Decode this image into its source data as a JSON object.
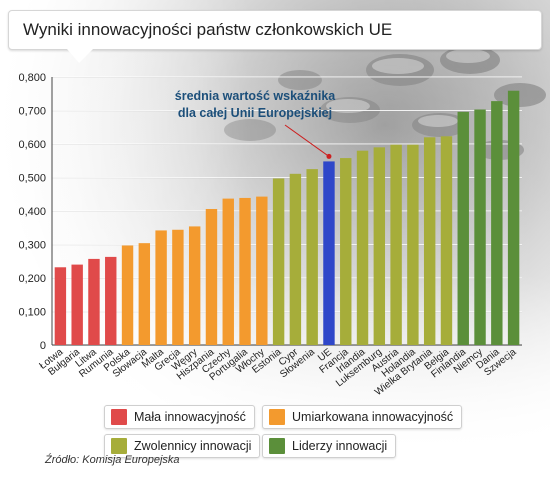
{
  "title": "Wyniki innowacyjności państw członkowskich UE",
  "source": "Źródło: Komisja Europejska",
  "colors": {
    "Mała innowacyjność": "#e04a4a",
    "Umiarkowana innowacyjność": "#f39a2e",
    "Zwolennicy innowacji": "#a6ad3a",
    "Liderzy innowacji": "#5b8f3a",
    "UE": "#2f47c9",
    "annotation": "#1c4f7a"
  },
  "legend": [
    {
      "label": "Mała innowacyjność",
      "color": "#e04a4a"
    },
    {
      "label": "Umiarkowana innowacyjność",
      "color": "#f39a2e"
    },
    {
      "label": "Zwolennicy innowacji",
      "color": "#a6ad3a"
    },
    {
      "label": "Liderzy innowacji",
      "color": "#5b8f3a"
    }
  ],
  "chart_data": {
    "type": "bar",
    "title": "Wyniki innowacyjności państw członkowskich UE",
    "xlabel": "",
    "ylabel": "",
    "ylim": [
      0,
      0.8
    ],
    "yticks": [
      "0",
      "0,100",
      "0,200",
      "0,300",
      "0,400",
      "0,500",
      "0,600",
      "0,700",
      "0,800"
    ],
    "grid": true,
    "categories": [
      "Łotwa",
      "Bułgaria",
      "Litwa",
      "Rumunia",
      "Polska",
      "Słowacja",
      "Malta",
      "Grecja",
      "Węgry",
      "Hiszpania",
      "Czechy",
      "Portugalia",
      "Włochy",
      "Estonia",
      "Cypr",
      "Słowenia",
      "UE",
      "Francja",
      "Irlandia",
      "Luksemburg",
      "Austria",
      "Holandia",
      "Wielka Brytania",
      "Belgia",
      "Finlandia",
      "Niemcy",
      "Dania",
      "Szwecja"
    ],
    "values": [
      0.232,
      0.24,
      0.257,
      0.263,
      0.297,
      0.304,
      0.342,
      0.344,
      0.354,
      0.406,
      0.437,
      0.439,
      0.443,
      0.497,
      0.511,
      0.525,
      0.548,
      0.558,
      0.58,
      0.59,
      0.598,
      0.598,
      0.62,
      0.623,
      0.696,
      0.703,
      0.728,
      0.759
    ],
    "groups": [
      "Mała innowacyjność",
      "Mała innowacyjność",
      "Mała innowacyjność",
      "Mała innowacyjność",
      "Umiarkowana innowacyjność",
      "Umiarkowana innowacyjność",
      "Umiarkowana innowacyjność",
      "Umiarkowana innowacyjność",
      "Umiarkowana innowacyjność",
      "Umiarkowana innowacyjność",
      "Umiarkowana innowacyjność",
      "Umiarkowana innowacyjność",
      "Umiarkowana innowacyjność",
      "Zwolennicy innowacji",
      "Zwolennicy innowacji",
      "Zwolennicy innowacji",
      "UE",
      "Zwolennicy innowacji",
      "Zwolennicy innowacji",
      "Zwolennicy innowacji",
      "Zwolennicy innowacji",
      "Zwolennicy innowacji",
      "Zwolennicy innowacji",
      "Zwolennicy innowacji",
      "Liderzy innowacji",
      "Liderzy innowacji",
      "Liderzy innowacji",
      "Liderzy innowacji"
    ],
    "annotation": {
      "lines": [
        "średnia wartość wskaźnika",
        "dla całej Unii Europejskiej"
      ],
      "target": "UE"
    }
  }
}
